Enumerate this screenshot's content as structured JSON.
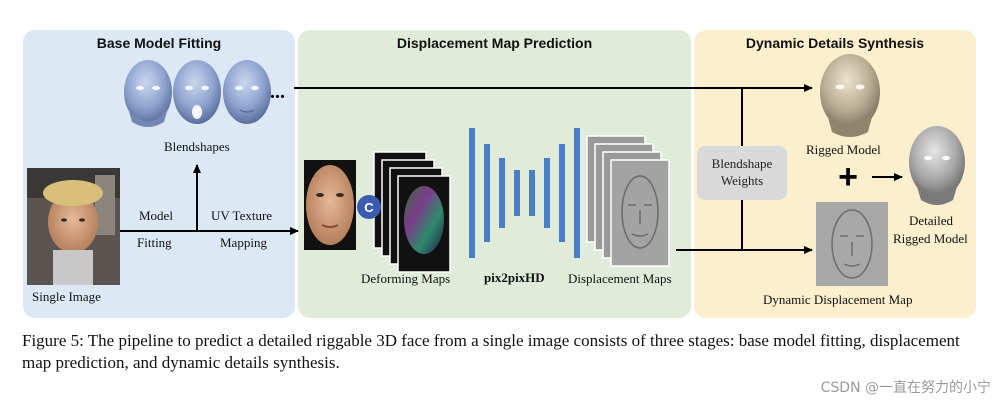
{
  "panels": {
    "base": "Base Model Fitting",
    "disp": "Displacement Map Prediction",
    "dyn": "Dynamic Details Synthesis"
  },
  "labels": {
    "blendshapes": "Blendshapes",
    "model": "Model",
    "fitting": "Fitting",
    "uv_texture": "UV Texture",
    "mapping": "Mapping",
    "single_image": "Single Image",
    "deforming_maps": "Deforming Maps",
    "pix2pixhd": "pix2pixHD",
    "displacement_maps": "Displacement Maps",
    "blendshape_weights_1": "Blendshape",
    "blendshape_weights_2": "Weights",
    "rigged_model": "Rigged Model",
    "detailed_1": "Detailed",
    "detailed_2": "Rigged Model",
    "dynamic_disp_map": "Dynamic Displacement Map",
    "concat_symbol": "C",
    "plus_symbol": "+",
    "ellipsis": "..."
  },
  "caption": "Figure 5: The pipeline to predict a detailed riggable 3D face from a single image consists of three stages: base model fitting, displacement map prediction, and dynamic details synthesis.",
  "watermark": "CSDN @一直在努力的小宁",
  "colors": {
    "panel_base": "#dde8f5",
    "panel_disp": "#e0ecd9",
    "panel_dyn": "#fbefcd",
    "network": "#4a7ec6",
    "concat": "#3b5bb0"
  }
}
